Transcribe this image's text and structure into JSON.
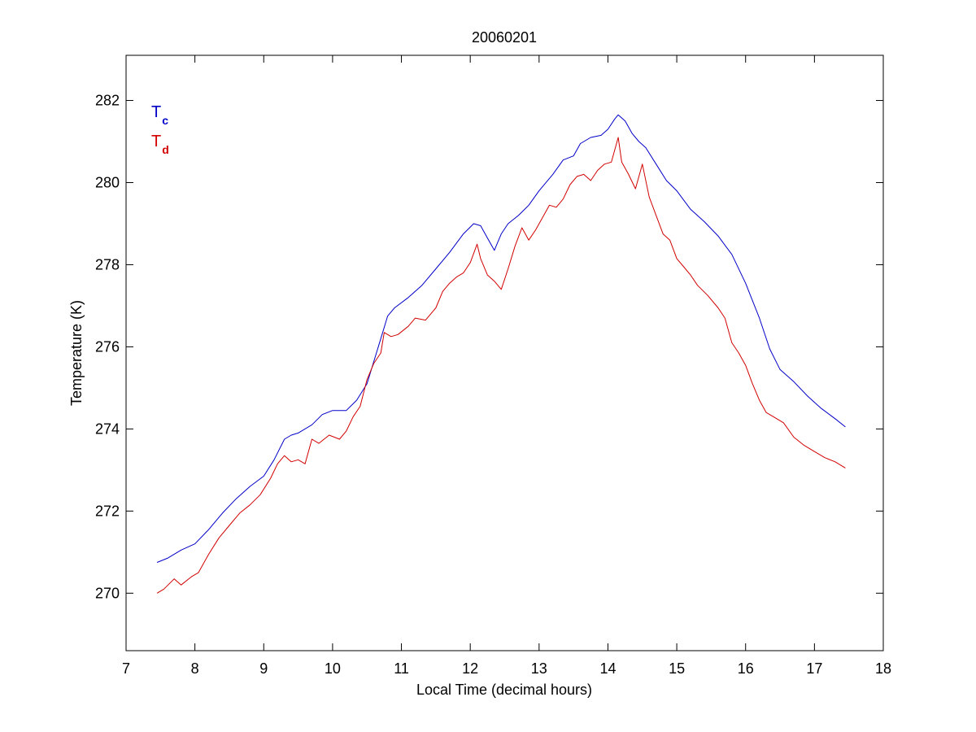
{
  "chart_data": {
    "type": "line",
    "title": "20060201",
    "xlabel": "Local Time (decimal hours)",
    "ylabel": "Temperature (K)",
    "xlim": [
      7,
      18
    ],
    "ylim": [
      268.6,
      283.1
    ],
    "xticks": [
      7,
      8,
      9,
      10,
      11,
      12,
      13,
      14,
      15,
      16,
      17,
      18
    ],
    "yticks": [
      270,
      272,
      274,
      276,
      278,
      280,
      282
    ],
    "grid": false,
    "legend_placement": "top-left",
    "legend": [
      {
        "main": "T",
        "sub": "c",
        "color": "#0000c8"
      },
      {
        "main": "T",
        "sub": "d",
        "color": "#d20000"
      }
    ],
    "series": [
      {
        "color": "#0000c8",
        "x": [
          7.45,
          7.6,
          7.8,
          8.0,
          8.2,
          8.4,
          8.6,
          8.8,
          9.0,
          9.15,
          9.3,
          9.4,
          9.5,
          9.7,
          9.85,
          10.0,
          10.2,
          10.35,
          10.5,
          10.6,
          10.7,
          10.8,
          10.9,
          11.1,
          11.3,
          11.5,
          11.7,
          11.9,
          12.05,
          12.15,
          12.25,
          12.35,
          12.45,
          12.55,
          12.7,
          12.85,
          13.0,
          13.2,
          13.35,
          13.5,
          13.6,
          13.75,
          13.9,
          14.0,
          14.1,
          14.15,
          14.25,
          14.35,
          14.45,
          14.55,
          14.7,
          14.85,
          15.0,
          15.2,
          15.4,
          15.6,
          15.8,
          16.0,
          16.2,
          16.35,
          16.5,
          16.7,
          16.9,
          17.1,
          17.3,
          17.45
        ],
        "y": [
          270.75,
          270.85,
          271.05,
          271.2,
          271.55,
          271.95,
          272.3,
          272.6,
          272.85,
          273.25,
          273.75,
          273.85,
          273.9,
          274.1,
          274.35,
          274.45,
          274.45,
          274.7,
          275.1,
          275.65,
          276.2,
          276.75,
          276.95,
          277.2,
          277.5,
          277.9,
          278.3,
          278.75,
          279.0,
          278.95,
          278.65,
          278.35,
          278.75,
          279.0,
          279.2,
          279.45,
          279.8,
          280.2,
          280.55,
          280.65,
          280.95,
          281.1,
          281.15,
          281.3,
          281.55,
          281.65,
          281.5,
          281.2,
          281.0,
          280.85,
          280.45,
          280.05,
          279.8,
          279.35,
          279.05,
          278.7,
          278.25,
          277.55,
          276.7,
          275.95,
          275.45,
          275.15,
          274.8,
          274.5,
          274.25,
          274.05
        ]
      },
      {
        "color": "#d20000",
        "x": [
          7.45,
          7.55,
          7.7,
          7.8,
          7.95,
          8.05,
          8.2,
          8.35,
          8.5,
          8.65,
          8.8,
          8.95,
          9.1,
          9.2,
          9.3,
          9.4,
          9.5,
          9.6,
          9.7,
          9.8,
          9.95,
          10.1,
          10.2,
          10.3,
          10.4,
          10.5,
          10.6,
          10.7,
          10.75,
          10.85,
          10.95,
          11.1,
          11.2,
          11.35,
          11.5,
          11.6,
          11.7,
          11.8,
          11.9,
          12.0,
          12.1,
          12.15,
          12.25,
          12.35,
          12.45,
          12.55,
          12.65,
          12.75,
          12.85,
          12.95,
          13.05,
          13.15,
          13.25,
          13.35,
          13.45,
          13.55,
          13.65,
          13.75,
          13.85,
          13.95,
          14.05,
          14.15,
          14.2,
          14.3,
          14.4,
          14.5,
          14.6,
          14.7,
          14.8,
          14.9,
          15.0,
          15.1,
          15.2,
          15.3,
          15.45,
          15.6,
          15.7,
          15.8,
          15.9,
          16.0,
          16.1,
          16.2,
          16.3,
          16.4,
          16.55,
          16.7,
          16.85,
          17.0,
          17.15,
          17.3,
          17.45
        ],
        "y": [
          270.0,
          270.1,
          270.35,
          270.2,
          270.4,
          270.5,
          270.95,
          271.35,
          271.65,
          271.95,
          272.15,
          272.4,
          272.8,
          273.15,
          273.35,
          273.2,
          273.25,
          273.15,
          273.75,
          273.65,
          273.85,
          273.75,
          273.95,
          274.3,
          274.55,
          275.2,
          275.6,
          275.85,
          276.35,
          276.25,
          276.3,
          276.5,
          276.7,
          276.65,
          276.95,
          277.35,
          277.55,
          277.7,
          277.8,
          278.05,
          278.5,
          278.15,
          277.75,
          277.6,
          277.4,
          277.9,
          278.45,
          278.9,
          278.6,
          278.85,
          279.15,
          279.45,
          279.4,
          279.6,
          279.95,
          280.15,
          280.2,
          280.05,
          280.3,
          280.45,
          280.5,
          281.1,
          280.5,
          280.2,
          279.85,
          280.45,
          279.65,
          279.2,
          278.75,
          278.6,
          278.15,
          277.95,
          277.75,
          277.5,
          277.25,
          276.95,
          276.7,
          276.1,
          275.85,
          275.55,
          275.1,
          274.7,
          274.4,
          274.3,
          274.15,
          273.8,
          273.6,
          273.45,
          273.3,
          273.2,
          273.05
        ]
      }
    ]
  }
}
